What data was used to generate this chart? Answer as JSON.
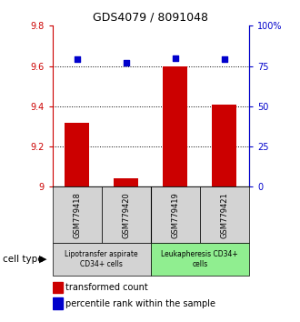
{
  "title": "GDS4079 / 8091048",
  "samples": [
    "GSM779418",
    "GSM779420",
    "GSM779419",
    "GSM779421"
  ],
  "bar_values": [
    9.32,
    9.04,
    9.6,
    9.41
  ],
  "percentile_values": [
    0.795,
    0.77,
    0.8,
    0.795
  ],
  "ylim_left": [
    9.0,
    9.8
  ],
  "ylim_right": [
    0.0,
    1.0
  ],
  "yticks_left": [
    9.0,
    9.2,
    9.4,
    9.6,
    9.8
  ],
  "ytick_labels_left": [
    "9",
    "9.2",
    "9.4",
    "9.6",
    "9.8"
  ],
  "yticks_right": [
    0.0,
    0.25,
    0.5,
    0.75,
    1.0
  ],
  "ytick_labels_right": [
    "0",
    "25",
    "50",
    "75",
    "100%"
  ],
  "bar_color": "#CC0000",
  "marker_color": "#0000CC",
  "cell_type_groups": [
    {
      "label": "Lipotransfer aspirate\nCD34+ cells",
      "start": 0,
      "end": 2,
      "color": "#d3d3d3"
    },
    {
      "label": "Leukapheresis CD34+\ncells",
      "start": 2,
      "end": 4,
      "color": "#90EE90"
    }
  ],
  "cell_type_label": "cell type",
  "legend_bar_label": "transformed count",
  "legend_marker_label": "percentile rank within the sample",
  "sample_box_color": "#d3d3d3",
  "bar_width": 0.5,
  "gridline_ticks": [
    9.2,
    9.4,
    9.6
  ]
}
